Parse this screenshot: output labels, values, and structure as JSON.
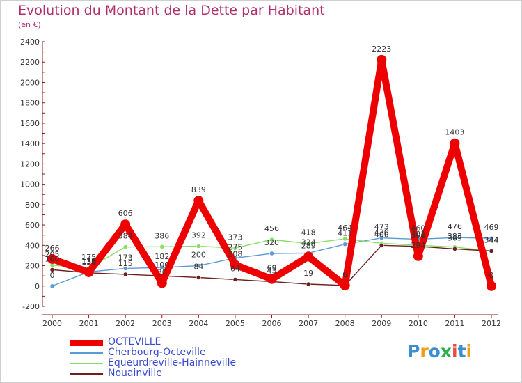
{
  "title": "Evolution du Montant de la Dette par Habitant",
  "subtitle": "(en €)",
  "logo": {
    "text": "Proxiti",
    "colors": [
      "#3b8ed0",
      "#f39c12",
      "#3b8ed0",
      "#2ab04a",
      "#e74c3c",
      "#3b8ed0",
      "#f39c12"
    ]
  },
  "chart_data": {
    "type": "line",
    "title": "Evolution du Montant de la Dette par Habitant",
    "subtitle": "(en €)",
    "x": [
      "2000",
      "2001",
      "2002",
      "2003",
      "2004",
      "2005",
      "2006",
      "2007",
      "2008",
      "2009",
      "2010",
      "2011",
      "2012"
    ],
    "ylim": [
      -200,
      2400
    ],
    "yticks": [
      -200,
      0,
      200,
      400,
      600,
      800,
      1000,
      1200,
      1400,
      1600,
      1800,
      2000,
      2200,
      2400
    ],
    "grid": false,
    "legend_position": "bottom",
    "series": [
      {
        "name": "OCTEVILLE",
        "color": "#ee0000",
        "values": [
          266,
          136,
          606,
          30,
          839,
          208,
          69,
          289,
          6,
          2223,
          294,
          1403,
          0
        ]
      },
      {
        "name": "Cherbourg-Octeville",
        "color": "#5a9bd5",
        "values": [
          0,
          139,
          173,
          182,
          200,
          275,
          320,
          324,
          411,
          473,
          460,
          476,
          469
        ]
      },
      {
        "name": "Equeurdreville-Hainneville",
        "color": "#88dd66",
        "values": [
          205,
          175,
          384,
          386,
          392,
          373,
          456,
          418,
          464,
          420,
          401,
          383,
          344
        ]
      },
      {
        "name": "Nouainville",
        "color": "#6e2020",
        "values": [
          160,
          130,
          115,
          100,
          84,
          64,
          43,
          19,
          6,
          400,
          390,
          365,
          344
        ]
      }
    ]
  }
}
